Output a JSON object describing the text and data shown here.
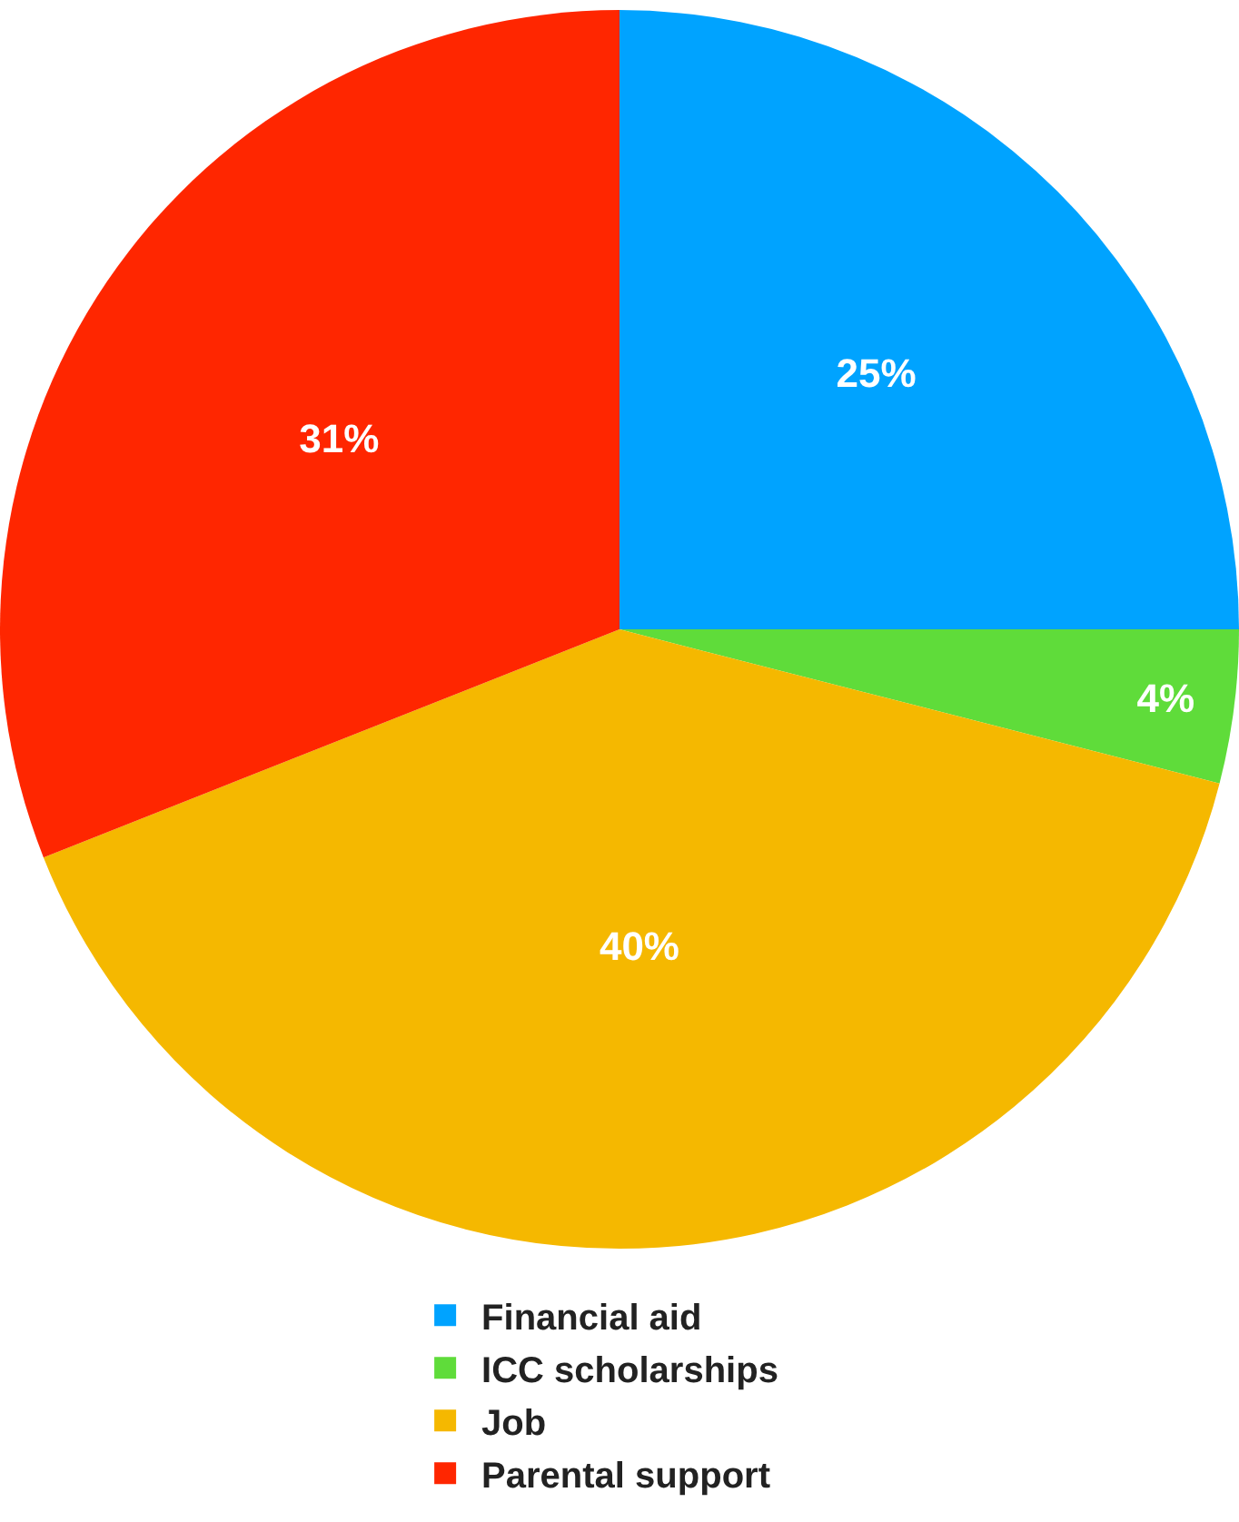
{
  "chart_data": {
    "type": "pie",
    "categories": [
      "Financial aid",
      "ICC scholarships",
      "Job",
      "Parental support"
    ],
    "values": [
      25,
      4,
      40,
      31
    ],
    "colors": [
      "#00a3ff",
      "#5fdc3a",
      "#f5b800",
      "#ff2600"
    ],
    "value_labels": [
      "25%",
      "4%",
      "40%",
      "31%"
    ],
    "legend": "bottom"
  }
}
